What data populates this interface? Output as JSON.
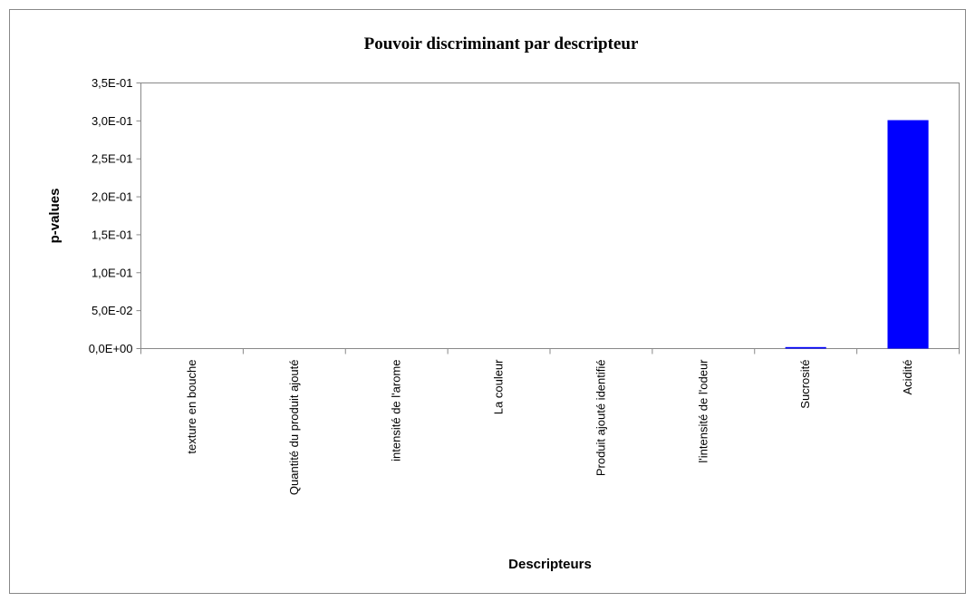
{
  "chart_data": {
    "type": "bar",
    "title": "Pouvoir discriminant par descripteur",
    "xlabel": "Descripteurs",
    "ylabel": "p-values",
    "categories": [
      "texture en bouche",
      "Quantité du produit ajouté",
      "intensité de  l'arome",
      "La couleur",
      "Produit ajouté identifié",
      "l'intensité de l'odeur",
      "Sucrosité",
      "Acidité"
    ],
    "values": [
      0,
      0,
      0,
      0,
      0,
      0,
      0.002,
      0.301
    ],
    "color": "#0000ff",
    "ylim": [
      0,
      0.35
    ],
    "yticks": [
      {
        "value": 0,
        "label": "0,0E+00"
      },
      {
        "value": 0.05,
        "label": "5,0E-02"
      },
      {
        "value": 0.1,
        "label": "1,0E-01"
      },
      {
        "value": 0.15,
        "label": "1,5E-01"
      },
      {
        "value": 0.2,
        "label": "2,0E-01"
      },
      {
        "value": 0.25,
        "label": "2,5E-01"
      },
      {
        "value": 0.3,
        "label": "3,0E-01"
      },
      {
        "value": 0.35,
        "label": "3,5E-01"
      }
    ],
    "grid": false
  }
}
